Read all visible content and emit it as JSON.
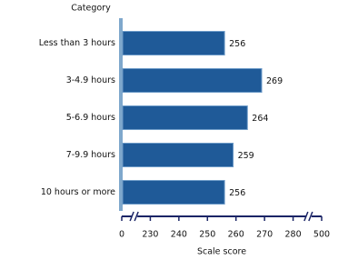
{
  "chart_data": {
    "type": "bar",
    "orientation": "horizontal",
    "y_axis_title": "Category",
    "x_axis_title": "Scale score",
    "categories": [
      "Less than 3 hours",
      "3-4.9 hours",
      "5-6.9 hours",
      "7-9.9 hours",
      "10 hours or more"
    ],
    "values": [
      256,
      269,
      264,
      259,
      256
    ],
    "color": "#1f5a98",
    "xlim": [
      0,
      500
    ],
    "xticks": [
      0,
      230,
      240,
      250,
      260,
      270,
      280,
      500
    ],
    "axis_breaks": true
  }
}
